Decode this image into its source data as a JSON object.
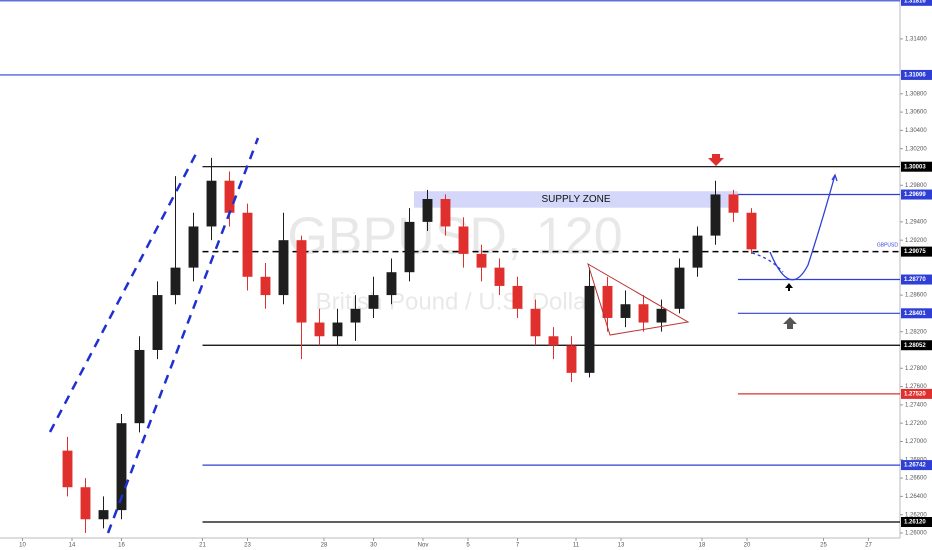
{
  "chart_data": {
    "type": "candlestick",
    "watermark_title": "GBPUSD, 120",
    "watermark_subtitle": "British Pound / U.S. Dollar",
    "symbol_tag": "GBPUSD",
    "up_color": "#1e1e1e",
    "down_color": "#e0302e",
    "x": [
      15,
      19,
      23,
      27,
      31,
      35,
      39,
      43,
      47,
      51,
      55,
      59,
      63,
      67,
      71,
      75,
      79,
      83,
      87,
      91,
      95,
      99,
      103,
      107,
      111,
      115,
      119,
      123,
      127,
      131,
      135,
      139,
      143,
      147,
      151,
      155,
      159,
      163,
      167
    ],
    "open": [
      1.269,
      1.265,
      1.2615,
      1.2625,
      1.272,
      1.28,
      1.286,
      1.289,
      1.2935,
      1.2985,
      1.295,
      1.288,
      1.286,
      1.292,
      1.283,
      1.2815,
      1.283,
      1.2845,
      1.286,
      1.2885,
      1.294,
      1.2965,
      1.2935,
      1.2905,
      1.289,
      1.287,
      1.2845,
      1.2815,
      1.2805,
      1.2775,
      1.287,
      1.2835,
      1.285,
      1.283,
      1.2845,
      1.289,
      1.2925,
      1.297,
      1.295
    ],
    "high": [
      1.2705,
      1.266,
      1.264,
      1.273,
      1.2815,
      1.2875,
      1.299,
      1.295,
      1.301,
      1.2995,
      1.296,
      1.2895,
      1.295,
      1.2925,
      1.2845,
      1.2845,
      1.286,
      1.288,
      1.29,
      1.2955,
      1.2975,
      1.297,
      1.2945,
      1.2915,
      1.29,
      1.288,
      1.2855,
      1.2825,
      1.2815,
      1.289,
      1.288,
      1.2865,
      1.286,
      1.2855,
      1.29,
      1.2935,
      1.2985,
      1.2975,
      1.2955
    ],
    "low": [
      1.264,
      1.26,
      1.2605,
      1.2615,
      1.271,
      1.279,
      1.285,
      1.2875,
      1.292,
      1.2935,
      1.2865,
      1.2845,
      1.285,
      1.279,
      1.2805,
      1.2805,
      1.281,
      1.2835,
      1.285,
      1.2875,
      1.293,
      1.2925,
      1.289,
      1.2875,
      1.286,
      1.2835,
      1.2805,
      1.279,
      1.2765,
      1.277,
      1.282,
      1.2825,
      1.282,
      1.282,
      1.284,
      1.288,
      1.2915,
      1.294,
      1.2905
    ],
    "close": [
      1.265,
      1.2615,
      1.2625,
      1.272,
      1.28,
      1.286,
      1.289,
      1.2935,
      1.2985,
      1.295,
      1.288,
      1.286,
      1.292,
      1.283,
      1.2815,
      1.283,
      1.2845,
      1.286,
      1.2885,
      1.294,
      1.2965,
      1.2935,
      1.2905,
      1.289,
      1.287,
      1.2845,
      1.2815,
      1.2805,
      1.2775,
      1.287,
      1.2835,
      1.285,
      1.283,
      1.2845,
      1.289,
      1.2925,
      1.297,
      1.295,
      1.291
    ],
    "xlim": [
      0,
      200
    ],
    "ylim": [
      1.25814,
      1.31825
    ],
    "xticks": [
      {
        "value": 5,
        "label": "10"
      },
      {
        "value": 16,
        "label": "14"
      },
      {
        "value": 27,
        "label": "16"
      },
      {
        "value": 45,
        "label": "21"
      },
      {
        "value": 55,
        "label": "23"
      },
      {
        "value": 72,
        "label": "28"
      },
      {
        "value": 83,
        "label": "30"
      },
      {
        "value": 94,
        "label": "Nov"
      },
      {
        "value": 104,
        "label": "5"
      },
      {
        "value": 115,
        "label": "7"
      },
      {
        "value": 128,
        "label": "11"
      },
      {
        "value": 138,
        "label": "13"
      },
      {
        "value": 156,
        "label": "18"
      },
      {
        "value": 166,
        "label": "20"
      },
      {
        "value": 183,
        "label": "25"
      },
      {
        "value": 193,
        "label": "27"
      }
    ],
    "yticks": [
      {
        "value": 1.314,
        "label": "1.31400"
      },
      {
        "value": 1.308,
        "label": "1.30800"
      },
      {
        "value": 1.306,
        "label": "1.30600"
      },
      {
        "value": 1.304,
        "label": "1.30400"
      },
      {
        "value": 1.302,
        "label": "1.30200"
      },
      {
        "value": 1.298,
        "label": "1.29800"
      },
      {
        "value": 1.294,
        "label": "1.29400"
      },
      {
        "value": 1.292,
        "label": "1.29200"
      },
      {
        "value": 1.286,
        "label": "1.28600"
      },
      {
        "value": 1.282,
        "label": "1.28200"
      },
      {
        "value": 1.278,
        "label": "1.27800"
      },
      {
        "value": 1.276,
        "label": "1.27600"
      },
      {
        "value": 1.274,
        "label": "1.27400"
      },
      {
        "value": 1.272,
        "label": "1.27200"
      },
      {
        "value": 1.27,
        "label": "1.27000"
      },
      {
        "value": 1.268,
        "label": "1.26800"
      },
      {
        "value": 1.266,
        "label": "1.26600"
      },
      {
        "value": 1.264,
        "label": "1.26400"
      },
      {
        "value": 1.262,
        "label": "1.26200"
      },
      {
        "value": 1.26,
        "label": "1.26000"
      }
    ],
    "levels": [
      {
        "value": 1.31816,
        "label": "1.31816",
        "color": "#2f3fd6",
        "x_start": 0,
        "style": "solid"
      },
      {
        "value": 1.31006,
        "label": "1.31006",
        "color": "#2f3fd6",
        "x_start": 0,
        "style": "solid"
      },
      {
        "value": 1.30003,
        "label": "1.30003",
        "color": "#000000",
        "x_start": 45,
        "style": "solid"
      },
      {
        "value": 1.29699,
        "label": "1.29699",
        "color": "#2f3fd6",
        "x_start": 164,
        "style": "solid"
      },
      {
        "value": 1.29075,
        "label": "1.29075",
        "color": "#000000",
        "x_start": 45,
        "style": "dashed"
      },
      {
        "value": 1.2877,
        "label": "1.28770",
        "color": "#2f3fd6",
        "x_start": 164,
        "style": "solid"
      },
      {
        "value": 1.28401,
        "label": "1.28401",
        "color": "#2f3fd6",
        "x_start": 164,
        "style": "solid"
      },
      {
        "value": 1.28052,
        "label": "1.28052",
        "color": "#000000",
        "x_start": 45,
        "style": "solid"
      },
      {
        "value": 1.2752,
        "label": "1.27520",
        "color": "#e0302e",
        "x_start": 164,
        "style": "solid"
      },
      {
        "value": 1.26742,
        "label": "1.26742",
        "color": "#2f3fd6",
        "x_start": 45,
        "style": "solid"
      },
      {
        "value": 1.2612,
        "label": "1.26120",
        "color": "#000000",
        "x_start": 45,
        "style": "solid"
      }
    ],
    "zone": {
      "label": "SUPPLY ZONE",
      "x": [
        92,
        164
      ],
      "y": [
        1.29555,
        1.29735
      ],
      "color": "#c9cdf7"
    }
  }
}
